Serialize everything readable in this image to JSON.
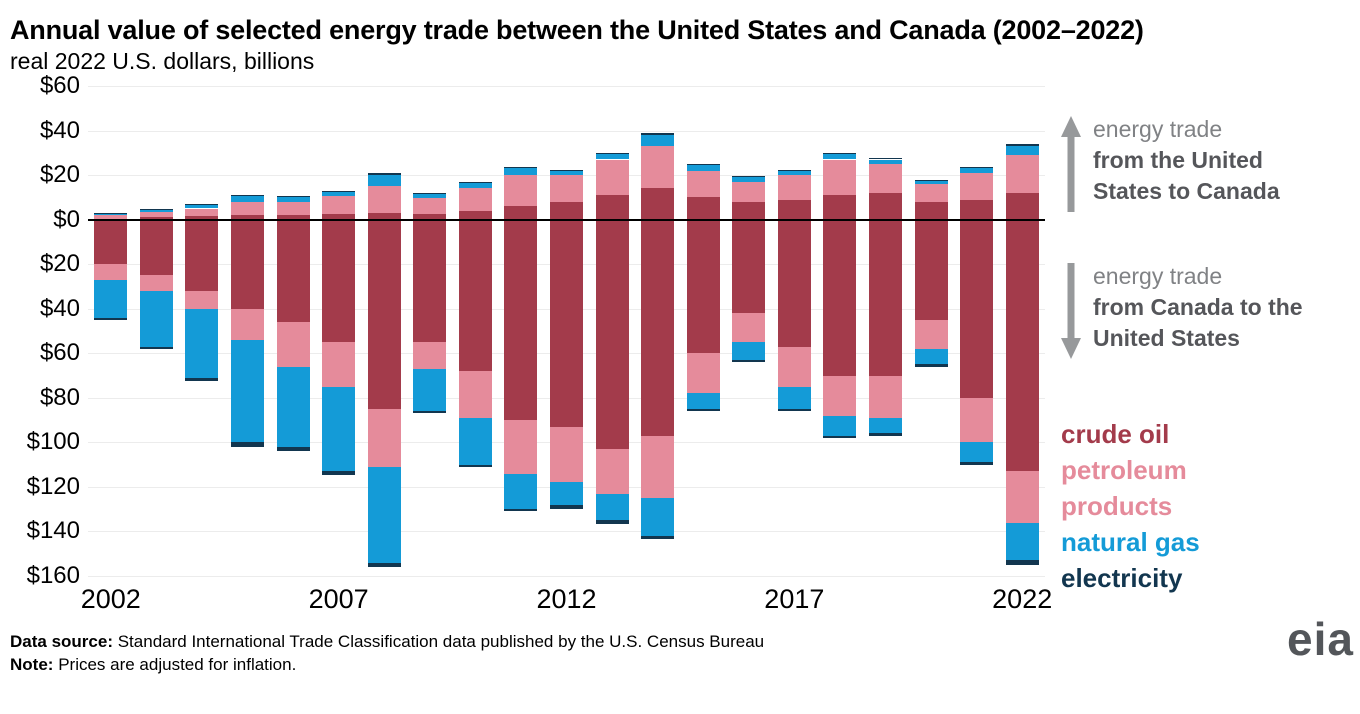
{
  "title": "Annual value of selected energy trade between the United States and Canada (2002–2022)",
  "subtitle": "real 2022 U.S. dollars, billions",
  "annotations": {
    "up": {
      "lead": "energy trade",
      "bold": "from the United States to Canada"
    },
    "down": {
      "lead": "energy trade",
      "bold": "from Canada to the United States"
    }
  },
  "legend": [
    {
      "label": "crude oil",
      "color": "#a33b4b"
    },
    {
      "label": "petroleum products",
      "color": "#e58b9b"
    },
    {
      "label": "natural gas",
      "color": "#149bd7"
    },
    {
      "label": "electricity",
      "color": "#12364f"
    }
  ],
  "logo": {
    "text": "eia"
  },
  "footer": {
    "source_label": "Data source:",
    "source_text": "Standard International Trade Classification data published by the U.S. Census Bureau",
    "note_label": "Note:",
    "note_text": "Prices are adjusted for inflation."
  },
  "colors": {
    "arrow_gray": "#97999b",
    "anno_lead_gray": "#808285",
    "anno_bold_gray": "#55565a",
    "zero_line": "#000000"
  },
  "chart_data": {
    "type": "bar",
    "variant": "diverging-stacked",
    "title": "Annual value of selected energy trade between the United States and Canada (2002–2022)",
    "unit": "billion real 2022 U.S. dollars",
    "categories": [
      "2002",
      "2003",
      "2004",
      "2005",
      "2006",
      "2007",
      "2008",
      "2009",
      "2010",
      "2011",
      "2012",
      "2013",
      "2014",
      "2015",
      "2016",
      "2017",
      "2018",
      "2019",
      "2020",
      "2021",
      "2022"
    ],
    "x_tick_labels": [
      "2002",
      "2007",
      "2012",
      "2017",
      "2022"
    ],
    "ylim": [
      -160,
      60
    ],
    "y_ticks": [
      {
        "value": 60,
        "label": "$60"
      },
      {
        "value": 40,
        "label": "$40"
      },
      {
        "value": 20,
        "label": "$20"
      },
      {
        "value": 0,
        "label": "$0"
      },
      {
        "value": -20,
        "label": "$20"
      },
      {
        "value": -40,
        "label": "$40"
      },
      {
        "value": -60,
        "label": "$60"
      },
      {
        "value": -80,
        "label": "$80"
      },
      {
        "value": -100,
        "label": "$100"
      },
      {
        "value": -120,
        "label": "$120"
      },
      {
        "value": -140,
        "label": "$140"
      },
      {
        "value": -160,
        "label": "$160"
      }
    ],
    "series_up": [
      {
        "name": "crude oil",
        "color": "#a33b4b",
        "values": [
          0.5,
          1,
          1.5,
          2,
          2,
          2.5,
          3,
          2.5,
          4,
          6,
          8,
          11,
          14,
          10,
          8,
          9,
          11,
          12,
          8,
          9,
          12
        ]
      },
      {
        "name": "petroleum products",
        "color": "#e58b9b",
        "values": [
          1.5,
          2.5,
          3.5,
          6,
          6,
          8,
          12,
          7,
          10,
          14,
          12,
          16,
          19,
          12,
          9,
          11,
          16,
          13,
          8,
          12,
          17
        ]
      },
      {
        "name": "natural gas",
        "color": "#149bd7",
        "values": [
          0.7,
          1,
          1.5,
          2.5,
          2,
          2,
          5,
          2,
          2.5,
          3,
          2,
          2.5,
          5,
          2.5,
          2,
          2,
          2.5,
          2,
          1.5,
          2,
          4
        ]
      },
      {
        "name": "electricity",
        "color": "#12364f",
        "values": [
          0.3,
          0.3,
          0.3,
          0.5,
          0.5,
          0.5,
          1,
          0.5,
          0.5,
          0.5,
          0.5,
          0.5,
          1,
          0.5,
          0.5,
          0.5,
          0.5,
          0.5,
          0.3,
          0.5,
          1
        ]
      }
    ],
    "series_down": [
      {
        "name": "crude oil",
        "color": "#a33b4b",
        "values": [
          20,
          25,
          32,
          40,
          46,
          55,
          85,
          55,
          68,
          90,
          93,
          103,
          97,
          60,
          42,
          57,
          70,
          70,
          45,
          80,
          113
        ]
      },
      {
        "name": "petroleum products",
        "color": "#e58b9b",
        "values": [
          7,
          7,
          8,
          14,
          20,
          20,
          26,
          12,
          21,
          24,
          25,
          20,
          28,
          18,
          13,
          18,
          18,
          19,
          13,
          20,
          23
        ]
      },
      {
        "name": "natural gas",
        "color": "#149bd7",
        "values": [
          17,
          25,
          31,
          46,
          36,
          38,
          43,
          19,
          21,
          16,
          10,
          12,
          17,
          7,
          8,
          10,
          9,
          7,
          7,
          9,
          17
        ]
      },
      {
        "name": "electricity",
        "color": "#12364f",
        "values": [
          1,
          1,
          1.5,
          2,
          2,
          1.5,
          2,
          1,
          1,
          1,
          2,
          1.5,
          1.5,
          1,
          1,
          1,
          1,
          1,
          1,
          1,
          2
        ]
      }
    ],
    "legend_position": "right",
    "grid": "faint-horizontal"
  }
}
